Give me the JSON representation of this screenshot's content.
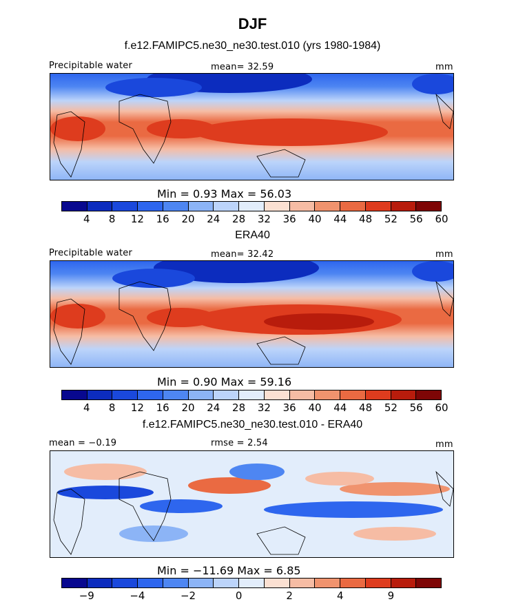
{
  "title": "DJF",
  "chart_data": [
    {
      "type": "heatmap",
      "title": "f.e12.FAMIPC5.ne30_ne30.test.010 (yrs 1980-1984)",
      "left_label": "Precipitable water",
      "center_label": "mean=   32.59",
      "units": "mm",
      "min_max": "Min =     0.93  Max =    56.03",
      "min": 0.93,
      "max": 56.03,
      "mean": 32.59,
      "colorbar_levels": [
        "4",
        "8",
        "12",
        "16",
        "20",
        "24",
        "28",
        "32",
        "36",
        "40",
        "44",
        "48",
        "52",
        "56",
        "60"
      ],
      "colormap": [
        "#08088f",
        "#0c2cbe",
        "#1a48dc",
        "#2e66ee",
        "#4e86f2",
        "#8cb4f6",
        "#bcd4fa",
        "#e2edfb",
        "#fbe0d2",
        "#f6bca4",
        "#f0936e",
        "#ea6a42",
        "#de3c1e",
        "#b81c0c",
        "#7e0606"
      ]
    },
    {
      "type": "heatmap",
      "title": "ERA40",
      "left_label": "Precipitable water",
      "center_label": "mean=   32.42",
      "units": "mm",
      "min_max": "Min =     0.90  Max =    59.16",
      "min": 0.9,
      "max": 59.16,
      "mean": 32.42,
      "colorbar_levels": [
        "4",
        "8",
        "12",
        "16",
        "20",
        "24",
        "28",
        "32",
        "36",
        "40",
        "44",
        "48",
        "52",
        "56",
        "60"
      ],
      "colormap": [
        "#08088f",
        "#0c2cbe",
        "#1a48dc",
        "#2e66ee",
        "#4e86f2",
        "#8cb4f6",
        "#bcd4fa",
        "#e2edfb",
        "#fbe0d2",
        "#f6bca4",
        "#f0936e",
        "#ea6a42",
        "#de3c1e",
        "#b81c0c",
        "#7e0606"
      ]
    },
    {
      "type": "heatmap",
      "title": "f.e12.FAMIPC5.ne30_ne30.test.010 - ERA40",
      "left_label": "mean =   −0.19",
      "center_label": "rmse =     2.54",
      "units": "mm",
      "min_max": "Min =  −11.69  Max =     6.85",
      "min": -11.69,
      "max": 6.85,
      "mean": -0.19,
      "rmse": 2.54,
      "colorbar_levels": [
        "−9",
        "−4",
        "−2",
        "0",
        "2",
        "4",
        "9"
      ],
      "colormap": [
        "#08088f",
        "#0c2cbe",
        "#1a48dc",
        "#2e66ee",
        "#4e86f2",
        "#8cb4f6",
        "#bcd4fa",
        "#e2edfb",
        "#fbe0d2",
        "#f6bca4",
        "#f0936e",
        "#ea6a42",
        "#de3c1e",
        "#b81c0c",
        "#7e0606"
      ]
    }
  ]
}
